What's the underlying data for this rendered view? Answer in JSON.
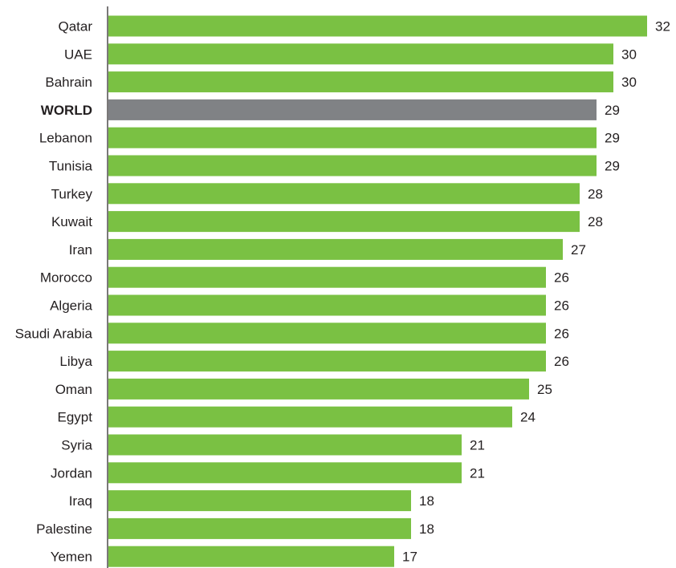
{
  "colors": {
    "bar": "#7ac143",
    "highlight": "#808285",
    "axis": "#231f20",
    "text": "#231f20"
  },
  "chart_data": {
    "type": "bar",
    "orientation": "horizontal",
    "categories": [
      "Qatar",
      "UAE",
      "Bahrain",
      "WORLD",
      "Lebanon",
      "Tunisia",
      "Turkey",
      "Kuwait",
      "Iran",
      "Morocco",
      "Algeria",
      "Saudi Arabia",
      "Libya",
      "Oman",
      "Egypt",
      "Syria",
      "Jordan",
      "Iraq",
      "Palestine",
      "Yemen"
    ],
    "values": [
      32,
      30,
      30,
      29,
      29,
      29,
      28,
      28,
      27,
      26,
      26,
      26,
      26,
      25,
      24,
      21,
      21,
      18,
      18,
      17
    ],
    "value_labels": [
      "32",
      "30",
      "30",
      "29",
      "29",
      "29",
      "28",
      "28",
      "27",
      "26",
      "26",
      "26",
      "26",
      "25",
      "24",
      "21",
      "21",
      "18",
      "18",
      "17"
    ],
    "highlight_category": "WORLD",
    "xlim": [
      0,
      32
    ],
    "grid": false,
    "legend": "none"
  }
}
